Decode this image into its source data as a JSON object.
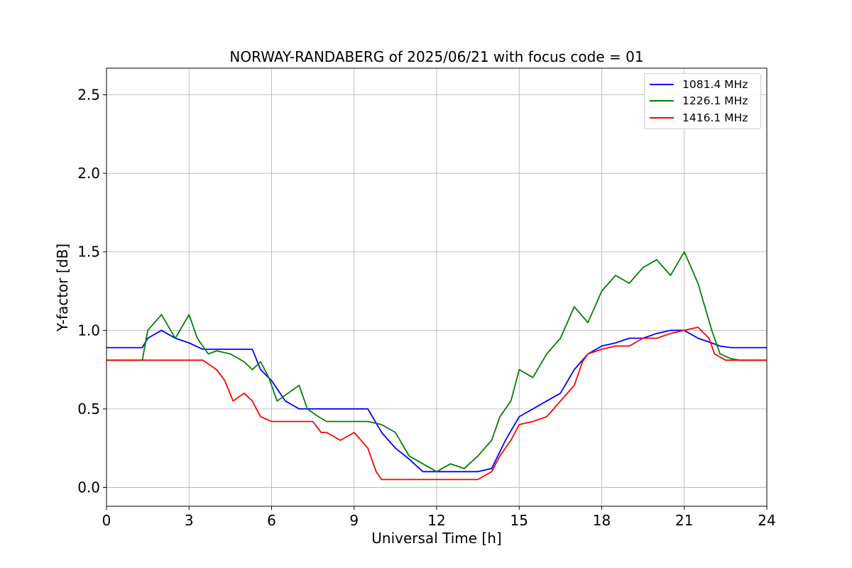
{
  "chart_data": {
    "type": "line",
    "title": "NORWAY-RANDABERG of 2025/06/21 with focus code = 01",
    "xlabel": "Universal Time [h]",
    "ylabel": "Y-factor [dB]",
    "xlim": [
      0,
      24
    ],
    "ylim": [
      -0.12,
      2.67
    ],
    "xticks": [
      0,
      3,
      6,
      9,
      12,
      15,
      18,
      21,
      24
    ],
    "xtick_labels": [
      "0",
      "3",
      "6",
      "9",
      "12",
      "15",
      "18",
      "21",
      "24"
    ],
    "yticks": [
      0.0,
      0.5,
      1.0,
      1.5,
      2.0,
      2.5
    ],
    "ytick_labels": [
      "0.0",
      "0.5",
      "1.0",
      "1.5",
      "2.0",
      "2.5"
    ],
    "grid": true,
    "legend_position": "top-right",
    "series": [
      {
        "name": "1081.4 MHz",
        "color": "#0000ff",
        "x": [
          0,
          0.5,
          1.0,
          1.3,
          1.5,
          2.0,
          2.5,
          3.0,
          3.5,
          4.0,
          4.5,
          5.0,
          5.3,
          5.6,
          6.0,
          6.5,
          7.0,
          7.5,
          7.8,
          8.2,
          8.6,
          9.0,
          9.5,
          10.0,
          10.5,
          11.0,
          11.5,
          12.0,
          12.5,
          13.0,
          13.5,
          14.0,
          14.5,
          15.0,
          15.5,
          16.0,
          16.5,
          17.0,
          17.5,
          18.0,
          18.5,
          19.0,
          19.5,
          20.0,
          20.5,
          21.0,
          21.5,
          22.0,
          22.3,
          22.7,
          23.0,
          23.5,
          24.0
        ],
        "y": [
          0.89,
          0.89,
          0.89,
          0.89,
          0.95,
          1.0,
          0.95,
          0.92,
          0.88,
          0.88,
          0.88,
          0.88,
          0.88,
          0.75,
          0.68,
          0.55,
          0.5,
          0.5,
          0.5,
          0.5,
          0.5,
          0.5,
          0.5,
          0.35,
          0.25,
          0.18,
          0.1,
          0.1,
          0.1,
          0.1,
          0.1,
          0.12,
          0.3,
          0.45,
          0.5,
          0.55,
          0.6,
          0.75,
          0.85,
          0.9,
          0.92,
          0.95,
          0.95,
          0.98,
          1.0,
          1.0,
          0.95,
          0.92,
          0.9,
          0.89,
          0.89,
          0.89,
          0.89
        ]
      },
      {
        "name": "1226.1 MHz",
        "color": "#008000",
        "x": [
          0,
          1.0,
          1.3,
          1.5,
          2.0,
          2.5,
          3.0,
          3.3,
          3.7,
          4.0,
          4.5,
          5.0,
          5.3,
          5.6,
          5.9,
          6.2,
          6.6,
          7.0,
          7.3,
          7.7,
          8.0,
          8.5,
          9.0,
          9.5,
          10.0,
          10.5,
          11.0,
          11.5,
          12.0,
          12.5,
          13.0,
          13.5,
          14.0,
          14.3,
          14.7,
          15.0,
          15.5,
          16.0,
          16.5,
          17.0,
          17.5,
          18.0,
          18.5,
          19.0,
          19.5,
          20.0,
          20.5,
          21.0,
          21.5,
          22.0,
          22.3,
          22.7,
          23.0,
          23.5,
          24.0
        ],
        "y": [
          0.81,
          0.81,
          0.81,
          1.0,
          1.1,
          0.95,
          1.1,
          0.95,
          0.85,
          0.87,
          0.85,
          0.8,
          0.75,
          0.8,
          0.7,
          0.55,
          0.6,
          0.65,
          0.5,
          0.45,
          0.42,
          0.42,
          0.42,
          0.42,
          0.4,
          0.35,
          0.2,
          0.15,
          0.1,
          0.15,
          0.12,
          0.2,
          0.3,
          0.45,
          0.55,
          0.75,
          0.7,
          0.85,
          0.95,
          1.15,
          1.05,
          1.25,
          1.35,
          1.3,
          1.4,
          1.45,
          1.35,
          1.5,
          1.3,
          1.0,
          0.85,
          0.82,
          0.81,
          0.81,
          0.81
        ]
      },
      {
        "name": "1416.1 MHz",
        "color": "#ff0000",
        "x": [
          0,
          1.0,
          1.3,
          1.5,
          2.0,
          2.5,
          3.0,
          3.5,
          4.0,
          4.3,
          4.6,
          5.0,
          5.3,
          5.6,
          6.0,
          6.5,
          7.0,
          7.5,
          7.8,
          8.0,
          8.5,
          9.0,
          9.5,
          9.8,
          10.0,
          10.5,
          11.0,
          11.5,
          12.0,
          12.5,
          13.0,
          13.5,
          14.0,
          14.3,
          14.7,
          15.0,
          15.5,
          16.0,
          16.5,
          17.0,
          17.3,
          17.5,
          18.0,
          18.5,
          19.0,
          19.5,
          20.0,
          20.5,
          21.0,
          21.5,
          21.9,
          22.1,
          22.5,
          23.0,
          23.5,
          24.0
        ],
        "y": [
          0.81,
          0.81,
          0.81,
          0.81,
          0.81,
          0.81,
          0.81,
          0.81,
          0.75,
          0.68,
          0.55,
          0.6,
          0.55,
          0.45,
          0.42,
          0.42,
          0.42,
          0.42,
          0.35,
          0.35,
          0.3,
          0.35,
          0.25,
          0.1,
          0.05,
          0.05,
          0.05,
          0.05,
          0.05,
          0.05,
          0.05,
          0.05,
          0.1,
          0.2,
          0.3,
          0.4,
          0.42,
          0.45,
          0.55,
          0.65,
          0.8,
          0.85,
          0.88,
          0.9,
          0.9,
          0.95,
          0.95,
          0.98,
          1.0,
          1.02,
          0.95,
          0.85,
          0.81,
          0.81,
          0.81,
          0.81
        ]
      }
    ]
  }
}
